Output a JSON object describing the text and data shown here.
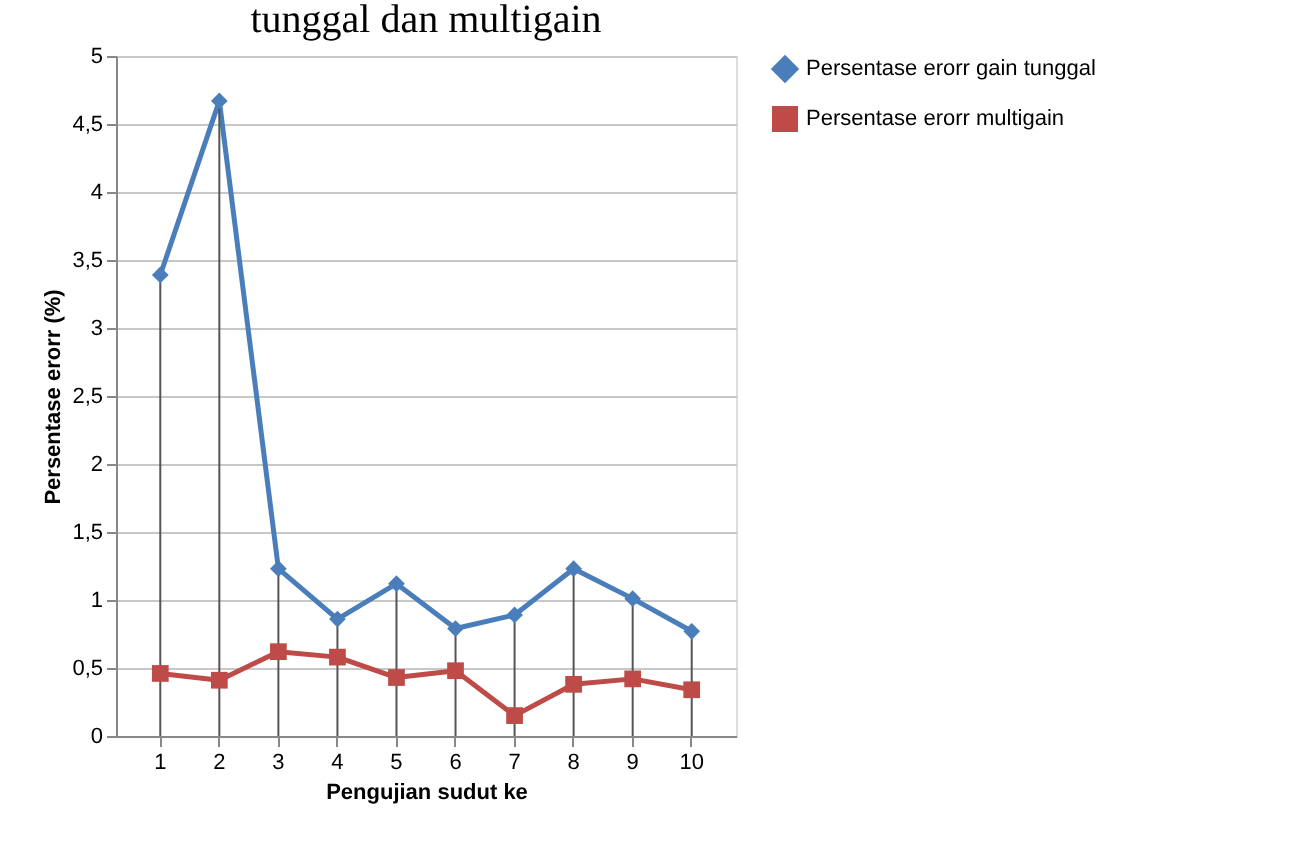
{
  "chart_data": {
    "type": "line",
    "title": "tunggal dan multigain",
    "xlabel": "Pengujian sudut ke",
    "ylabel": "Persentase erorr (%)",
    "categories": [
      "1",
      "2",
      "3",
      "4",
      "5",
      "6",
      "7",
      "8",
      "9",
      "10"
    ],
    "series": [
      {
        "name": "Persentase erorr gain tunggal",
        "color": "#4a7ebb",
        "marker": "diamond",
        "values": [
          3.39,
          4.67,
          1.23,
          0.86,
          1.12,
          0.79,
          0.89,
          1.23,
          1.01,
          0.77
        ],
        "errors": [
          [
            0,
            3.39
          ],
          [
            0,
            4.67
          ],
          [
            0,
            1.23
          ],
          [
            0,
            0.86
          ],
          [
            0,
            1.12
          ],
          [
            0,
            0.79
          ],
          [
            0,
            0.89
          ],
          [
            0,
            1.23
          ],
          [
            0,
            1.01
          ],
          [
            0,
            0.77
          ]
        ]
      },
      {
        "name": "Persentase erorr multigain",
        "color": "#be4b48",
        "marker": "square",
        "values": [
          0.46,
          0.41,
          0.62,
          0.58,
          0.43,
          0.48,
          0.15,
          0.38,
          0.42,
          0.34
        ]
      }
    ],
    "ylim": [
      0,
      5
    ],
    "yticks": [
      0,
      {
        "value": 0.5,
        "label": "0,5"
      },
      1,
      {
        "value": 1.5,
        "label": "1,5"
      },
      2,
      {
        "value": 2.5,
        "label": "2,5"
      },
      3,
      {
        "value": 3.5,
        "label": "3,5"
      },
      4,
      {
        "value": 4.5,
        "label": "4,5"
      },
      5
    ],
    "grid": "y",
    "legend": "right",
    "line_style": "solid"
  }
}
